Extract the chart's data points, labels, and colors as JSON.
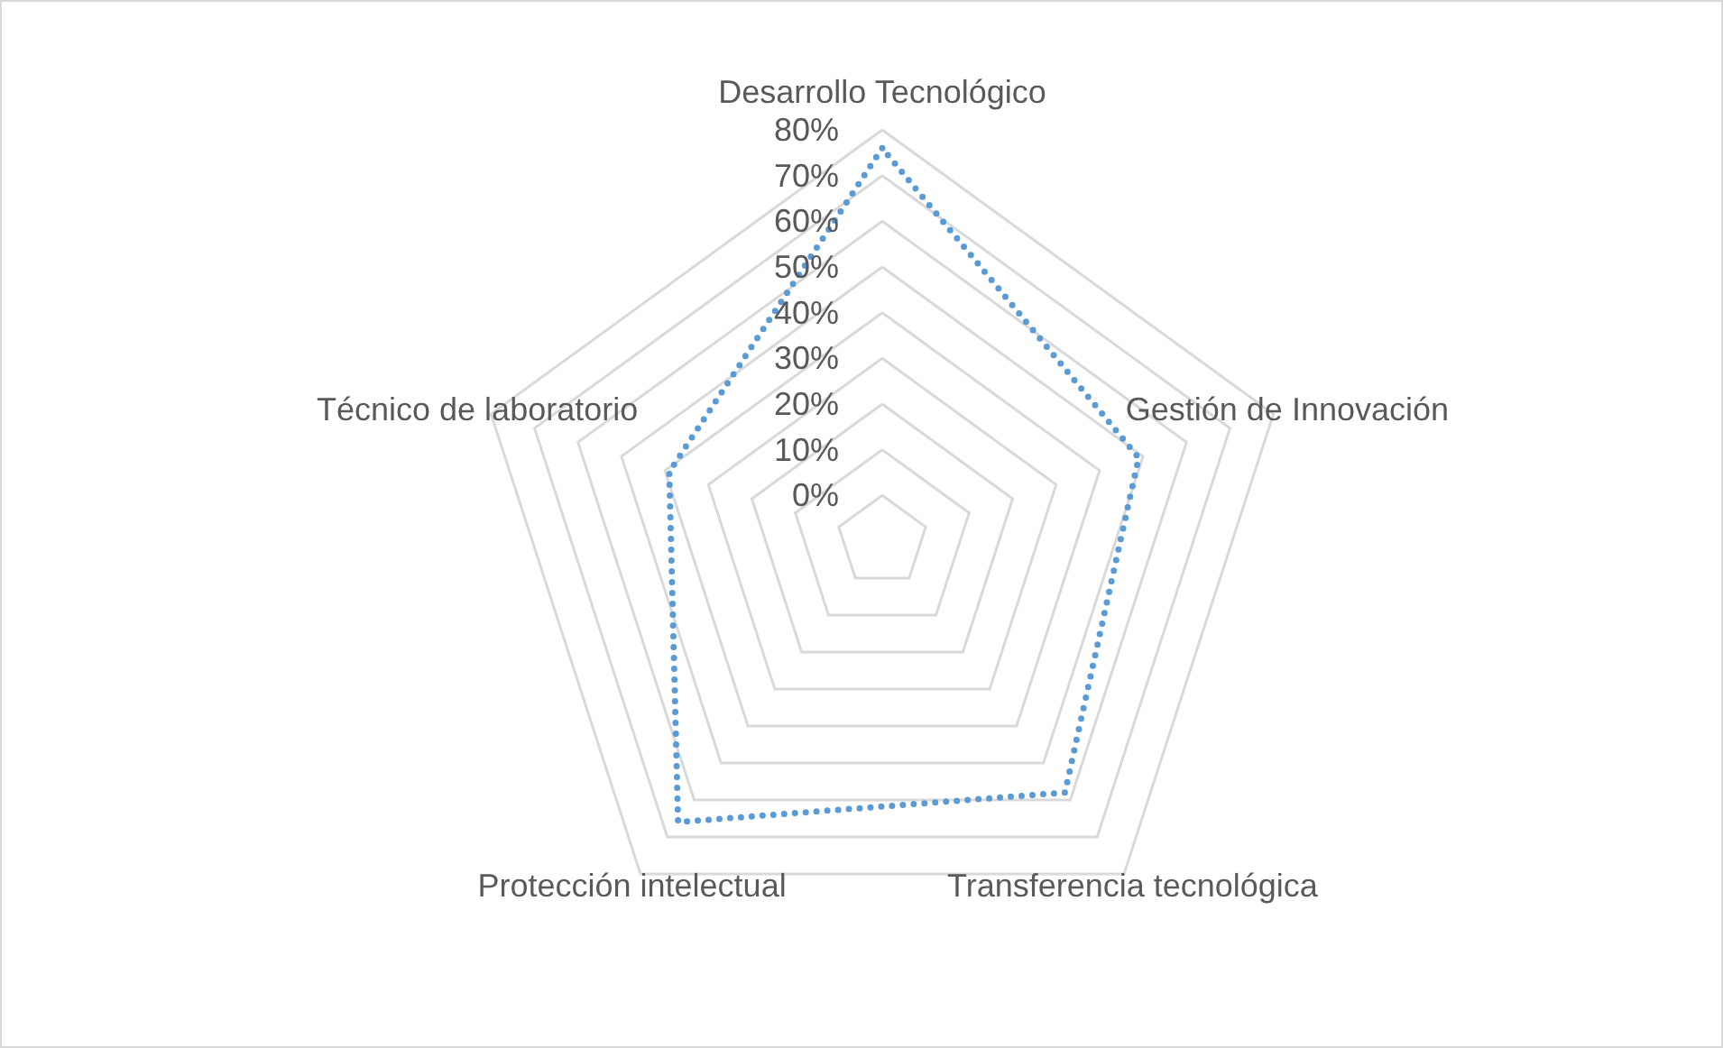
{
  "chart_data": {
    "type": "radar",
    "categories": [
      "Desarrollo Tecnológico",
      "Gestión de Innovación",
      "Transferencia tecnológica",
      "Protección intelectual",
      "Técnico de laboratorio"
    ],
    "series": [
      {
        "color": "#5b9bd5",
        "values": [
          76,
          49,
          58,
          66,
          39
        ]
      }
    ],
    "ylim": [
      -10,
      80
    ],
    "yticks": [
      {
        "value": 0,
        "label": "0%"
      },
      {
        "value": 10,
        "label": "10%"
      },
      {
        "value": 20,
        "label": "20%"
      },
      {
        "value": 30,
        "label": "30%"
      },
      {
        "value": 40,
        "label": "40%"
      },
      {
        "value": 50,
        "label": "50%"
      },
      {
        "value": 60,
        "label": "60%"
      },
      {
        "value": 70,
        "label": "70%"
      },
      {
        "value": 80,
        "label": "80%"
      }
    ],
    "marker": "none",
    "line_style": "dotted"
  }
}
